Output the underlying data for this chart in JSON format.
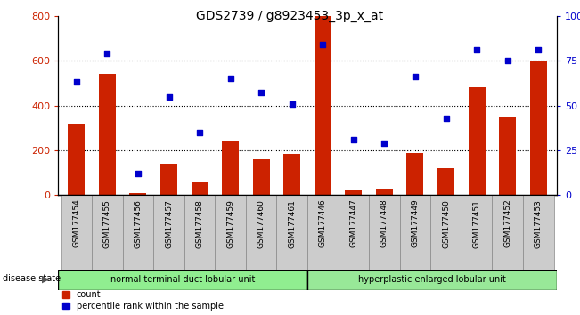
{
  "title": "GDS2739 / g8923453_3p_x_at",
  "samples": [
    "GSM177454",
    "GSM177455",
    "GSM177456",
    "GSM177457",
    "GSM177458",
    "GSM177459",
    "GSM177460",
    "GSM177461",
    "GSM177446",
    "GSM177447",
    "GSM177448",
    "GSM177449",
    "GSM177450",
    "GSM177451",
    "GSM177452",
    "GSM177453"
  ],
  "counts": [
    320,
    540,
    10,
    140,
    60,
    240,
    160,
    185,
    800,
    20,
    30,
    190,
    120,
    480,
    350,
    600
  ],
  "percentiles": [
    63,
    79,
    12,
    55,
    35,
    65,
    57,
    51,
    84,
    31,
    29,
    66,
    43,
    81,
    75,
    81
  ],
  "group1_label": "normal terminal duct lobular unit",
  "group2_label": "hyperplastic enlarged lobular unit",
  "group1_count": 8,
  "group2_count": 8,
  "bar_color": "#cc2200",
  "dot_color": "#0000cc",
  "ylim_left": [
    0,
    800
  ],
  "ylim_right": [
    0,
    100
  ],
  "yticks_left": [
    0,
    200,
    400,
    600,
    800
  ],
  "yticks_right": [
    0,
    25,
    50,
    75,
    100
  ],
  "grid_values": [
    200,
    400,
    600
  ],
  "disease_state_label": "disease state",
  "legend_count_label": "count",
  "legend_percentile_label": "percentile rank within the sample",
  "group1_color": "#90ee90",
  "group2_color": "#98e898",
  "tick_bg_color": "#cccccc",
  "title_fontsize": 10,
  "bar_width": 0.55,
  "plot_bg": "#ffffff"
}
